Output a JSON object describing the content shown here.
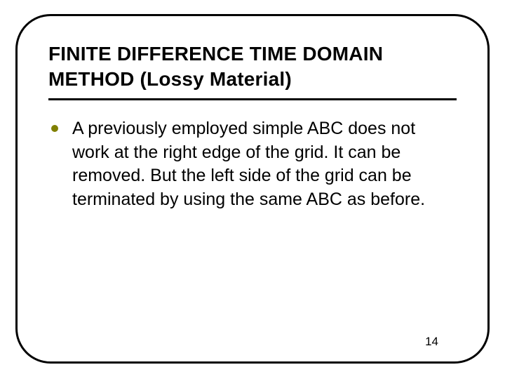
{
  "slide": {
    "title": "FINITE DIFFERENCE TIME DOMAIN METHOD (Lossy Material)",
    "bullets": [
      "A previously employed simple ABC does not work at the right edge of the grid. It can be removed. But the left side of the grid can be terminated by using the same ABC as before."
    ],
    "page_number": "14",
    "title_fontsize": 28,
    "body_fontsize": 25,
    "pagenum_fontsize": 17,
    "border_color": "#000000",
    "border_width": 3,
    "border_radius": 50,
    "bullet_color": "#808000",
    "bullet_diameter": 10,
    "text_color": "#000000",
    "background_color": "#ffffff"
  }
}
